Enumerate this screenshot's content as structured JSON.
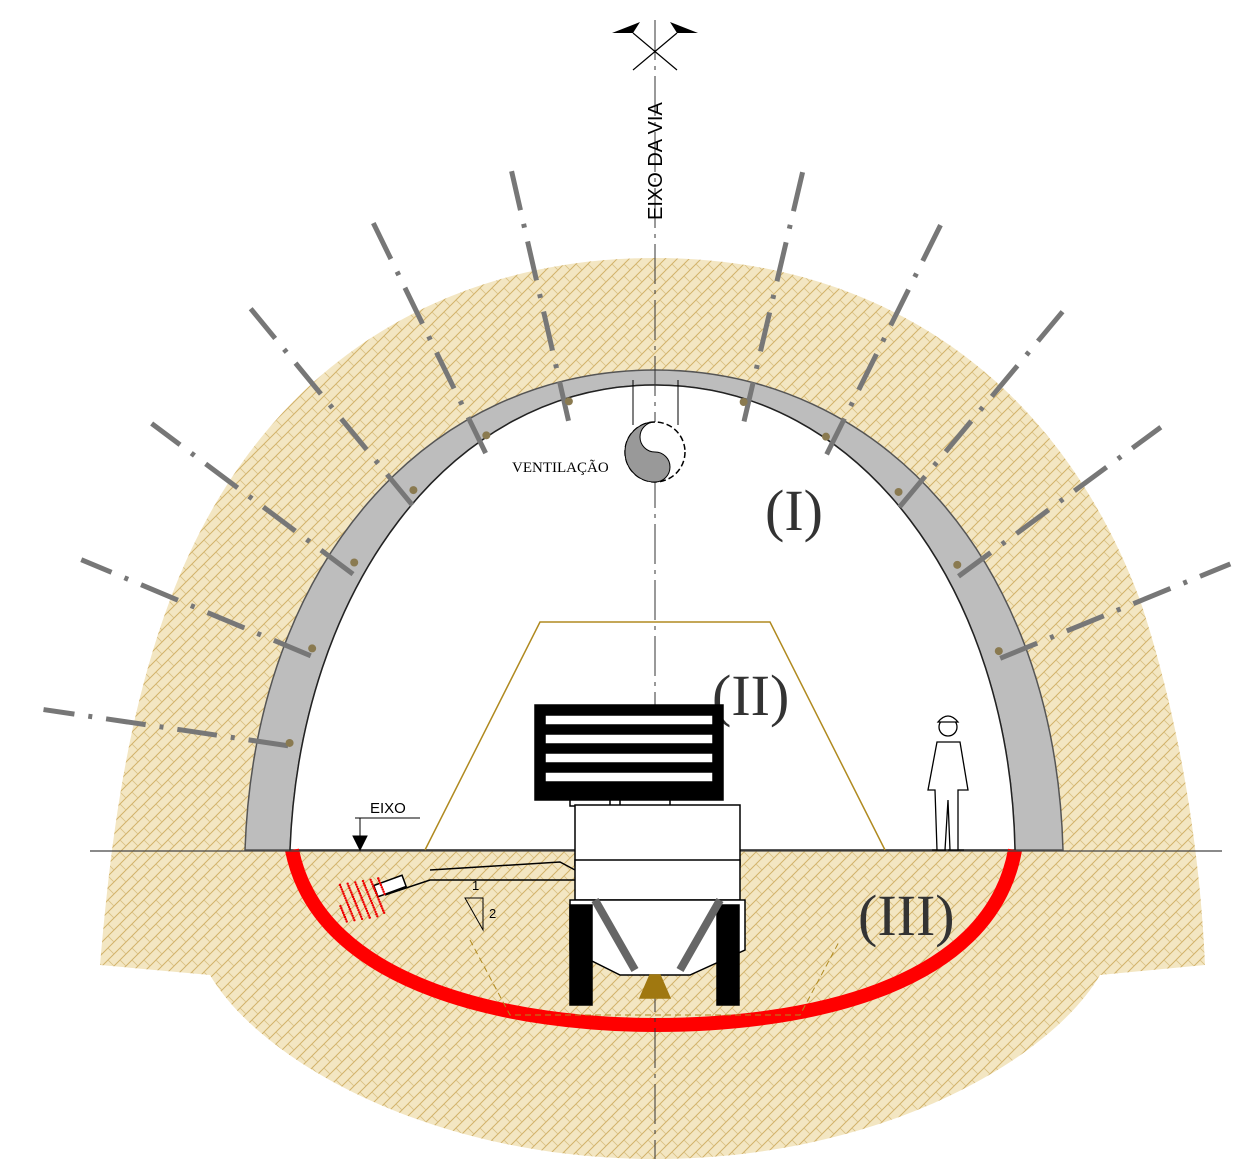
{
  "labels": {
    "axis": "EIXO DA VIA",
    "ventilation": "VENTILAÇÃO",
    "zone1": "(I)",
    "zone2": "(II)",
    "zone3": "(III)",
    "level": "EIXO",
    "slope_run": "1",
    "slope_rise": "2"
  }
}
